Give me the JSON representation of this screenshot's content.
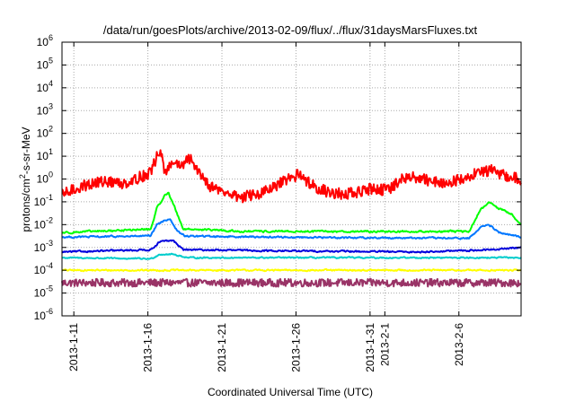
{
  "chart_data": {
    "type": "line",
    "title": "/data/run/goesPlots/archive/2013-02-09/flux/../flux/31daysMarsFluxes.txt",
    "xlabel": "Coordinated Universal Time (UTC)",
    "ylabel": {
      "prefix": "protons/cm",
      "superscript": "2",
      "suffix": "-s-sr-MeV"
    },
    "yscale": "log",
    "ylim_exponent": [
      -6,
      6
    ],
    "ytick_base": "10",
    "yticks": [
      "-6",
      "-5",
      "-4",
      "-3",
      "-2",
      "-1",
      "0",
      "1",
      "2",
      "3",
      "4",
      "5",
      "6"
    ],
    "xlim_days": [
      0,
      31
    ],
    "xticks": [
      {
        "label": "2013-1-11",
        "day": 0.8
      },
      {
        "label": "2013-1-16",
        "day": 5.8
      },
      {
        "label": "2013-1-21",
        "day": 10.8
      },
      {
        "label": "2013-1-26",
        "day": 15.8
      },
      {
        "label": "2013-1-31",
        "day": 20.8
      },
      {
        "label": "2013-2-1",
        "day": 21.8
      },
      {
        "label": "2013-2-6",
        "day": 26.8
      }
    ],
    "grid": true,
    "series": [
      {
        "color": "#ff0000",
        "base": 0.35,
        "noise": 0.25,
        "profile": [
          [
            0,
            -0.7
          ],
          [
            1,
            -0.4
          ],
          [
            2,
            -0.2
          ],
          [
            3,
            -0.1
          ],
          [
            4,
            -0.2
          ],
          [
            5,
            0
          ],
          [
            6,
            0.3
          ],
          [
            6.6,
            1.3
          ],
          [
            7,
            0.2
          ],
          [
            7.5,
            0.8
          ],
          [
            8,
            0.5
          ],
          [
            8.6,
            0.9
          ],
          [
            9.3,
            0.3
          ],
          [
            10,
            -0.3
          ],
          [
            11,
            -0.6
          ],
          [
            12,
            -0.8
          ],
          [
            13,
            -0.7
          ],
          [
            14,
            -0.5
          ],
          [
            15,
            -0.1
          ],
          [
            16,
            0.2
          ],
          [
            17,
            -0.3
          ],
          [
            18,
            -0.6
          ],
          [
            19,
            -0.65
          ],
          [
            20,
            -0.6
          ],
          [
            21,
            -0.4
          ],
          [
            22,
            -0.5
          ],
          [
            23,
            0
          ],
          [
            24,
            0.1
          ],
          [
            25,
            -0.1
          ],
          [
            26,
            -0.2
          ],
          [
            27,
            0
          ],
          [
            28,
            0.3
          ],
          [
            29,
            0.4
          ],
          [
            30,
            0.1
          ],
          [
            31,
            0
          ]
        ]
      },
      {
        "color": "#00ff00",
        "base": -2.35,
        "noise": 0.07,
        "profile": [
          [
            0,
            -2.35
          ],
          [
            6,
            -2.2
          ],
          [
            6.4,
            -1.3
          ],
          [
            6.9,
            -0.75
          ],
          [
            7.2,
            -0.6
          ],
          [
            7.7,
            -1.4
          ],
          [
            8.2,
            -2.2
          ],
          [
            9,
            -2.2
          ],
          [
            12,
            -2.3
          ],
          [
            24,
            -2.3
          ],
          [
            27.5,
            -2.3
          ],
          [
            28.2,
            -1.4
          ],
          [
            28.8,
            -1.0
          ],
          [
            29.5,
            -1.3
          ],
          [
            30.3,
            -1.5
          ],
          [
            31,
            -2.0
          ]
        ]
      },
      {
        "color": "#0077ff",
        "base": -2.55,
        "noise": 0.06,
        "profile": [
          [
            0,
            -2.55
          ],
          [
            6,
            -2.5
          ],
          [
            6.4,
            -2.0
          ],
          [
            7,
            -1.8
          ],
          [
            7.3,
            -1.75
          ],
          [
            7.8,
            -2.3
          ],
          [
            8.3,
            -2.5
          ],
          [
            15,
            -2.55
          ],
          [
            27.5,
            -2.6
          ],
          [
            28.3,
            -2.1
          ],
          [
            28.8,
            -2.0
          ],
          [
            29.5,
            -2.35
          ],
          [
            31,
            -2.55
          ]
        ]
      },
      {
        "color": "#0000dd",
        "base": -3.1,
        "noise": 0.06,
        "profile": [
          [
            0,
            -3.2
          ],
          [
            6,
            -3.1
          ],
          [
            6.6,
            -2.75
          ],
          [
            7.5,
            -2.7
          ],
          [
            8.2,
            -3.1
          ],
          [
            15,
            -3.15
          ],
          [
            24,
            -3.2
          ],
          [
            29,
            -3.1
          ],
          [
            31,
            -3.0
          ]
        ]
      },
      {
        "color": "#00cccc",
        "base": -3.5,
        "noise": 0.05,
        "profile": [
          [
            0,
            -3.45
          ],
          [
            6,
            -3.5
          ],
          [
            6.6,
            -3.3
          ],
          [
            7.5,
            -3.3
          ],
          [
            8.5,
            -3.45
          ],
          [
            31,
            -3.45
          ]
        ]
      },
      {
        "color": "#ffff00",
        "base": -4.0,
        "noise": 0.06,
        "profile": [
          [
            0,
            -4.0
          ],
          [
            31,
            -4.0
          ]
        ]
      },
      {
        "color": "#993366",
        "base": -4.55,
        "noise": 0.17,
        "profile": [
          [
            0,
            -4.55
          ],
          [
            31,
            -4.55
          ]
        ]
      }
    ]
  }
}
